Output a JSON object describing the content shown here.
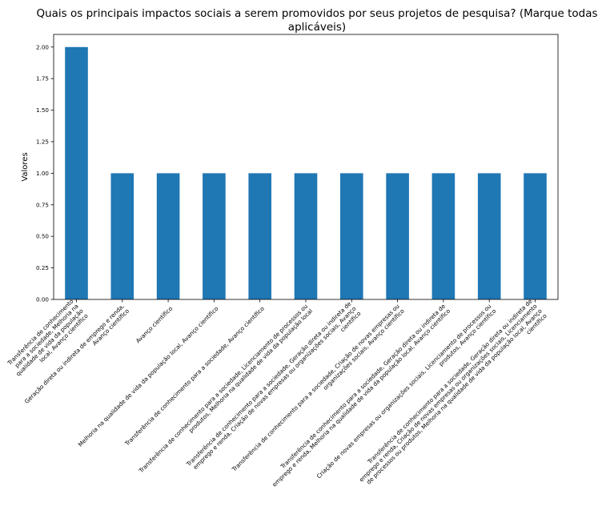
{
  "chart_data": {
    "type": "bar",
    "title": "Quais os principais impactos sociais a serem promovidos por seus projetos de pesquisa? (Marque todas aplicáveis)",
    "title_lines": [
      "Quais os principais impactos sociais a serem promovidos por seus projetos de pesquisa? (Marque todas",
      "aplicáveis)"
    ],
    "xlabel": "",
    "ylabel": "Valores",
    "ylim": [
      0,
      2.1
    ],
    "yticks": [
      0.0,
      0.25,
      0.5,
      0.75,
      1.0,
      1.25,
      1.5,
      1.75,
      2.0
    ],
    "ytick_labels": [
      "0.00",
      "0.25",
      "0.50",
      "0.75",
      "1.00",
      "1.25",
      "1.50",
      "1.75",
      "2.00"
    ],
    "grid": false,
    "bar_color": "#1f77b4",
    "categories": [
      [
        "Transferência de conhecimento",
        "para a sociedade, Melhoria na",
        "qualidade de vida da população",
        "local, Avanço científico"
      ],
      [
        "Geração direta ou indireta de emprego e renda,",
        "Avanço científico"
      ],
      [
        "Avanço científico"
      ],
      [
        "Melhoria na qualidade de vida da população local, Avanço científico"
      ],
      [
        "Transferência de conhecimento para a sociedade, Avanço científico"
      ],
      [
        "Transferência de conhecimento para a sociedade, Licenciamento de processos ou",
        "produtos, Melhoria na qualidade de vida da população local"
      ],
      [
        "Transferência de conhecimento para a sociedade, Geração direta ou indireta de",
        "emprego e renda, Criação de novas empresas ou organizações sociais, Avanço",
        "científico"
      ],
      [
        "Transferência de conhecimento para a sociedade, Criação de novas empresas ou",
        "organizações sociais, Avanço científico"
      ],
      [
        "Transferência de conhecimento para a sociedade, Geração direta ou indireta de",
        "emprego e renda, Melhoria na qualidade de vida da população local, Avanço científico"
      ],
      [
        "Criação de novas empresas ou organizações sociais, Licenciamento de processos ou",
        "produtos, Avanço científico"
      ],
      [
        "Transferência de conhecimento para a sociedade, Geração direta ou indireta de",
        "emprego e renda, Criação de novas empresas ou organizações sociais, Licenciamento",
        "de processos ou produtos, Melhoria na qualidade de vida da população local, Avanço",
        "científico"
      ]
    ],
    "values": [
      2,
      1,
      1,
      1,
      1,
      1,
      1,
      1,
      1,
      1,
      1
    ]
  }
}
